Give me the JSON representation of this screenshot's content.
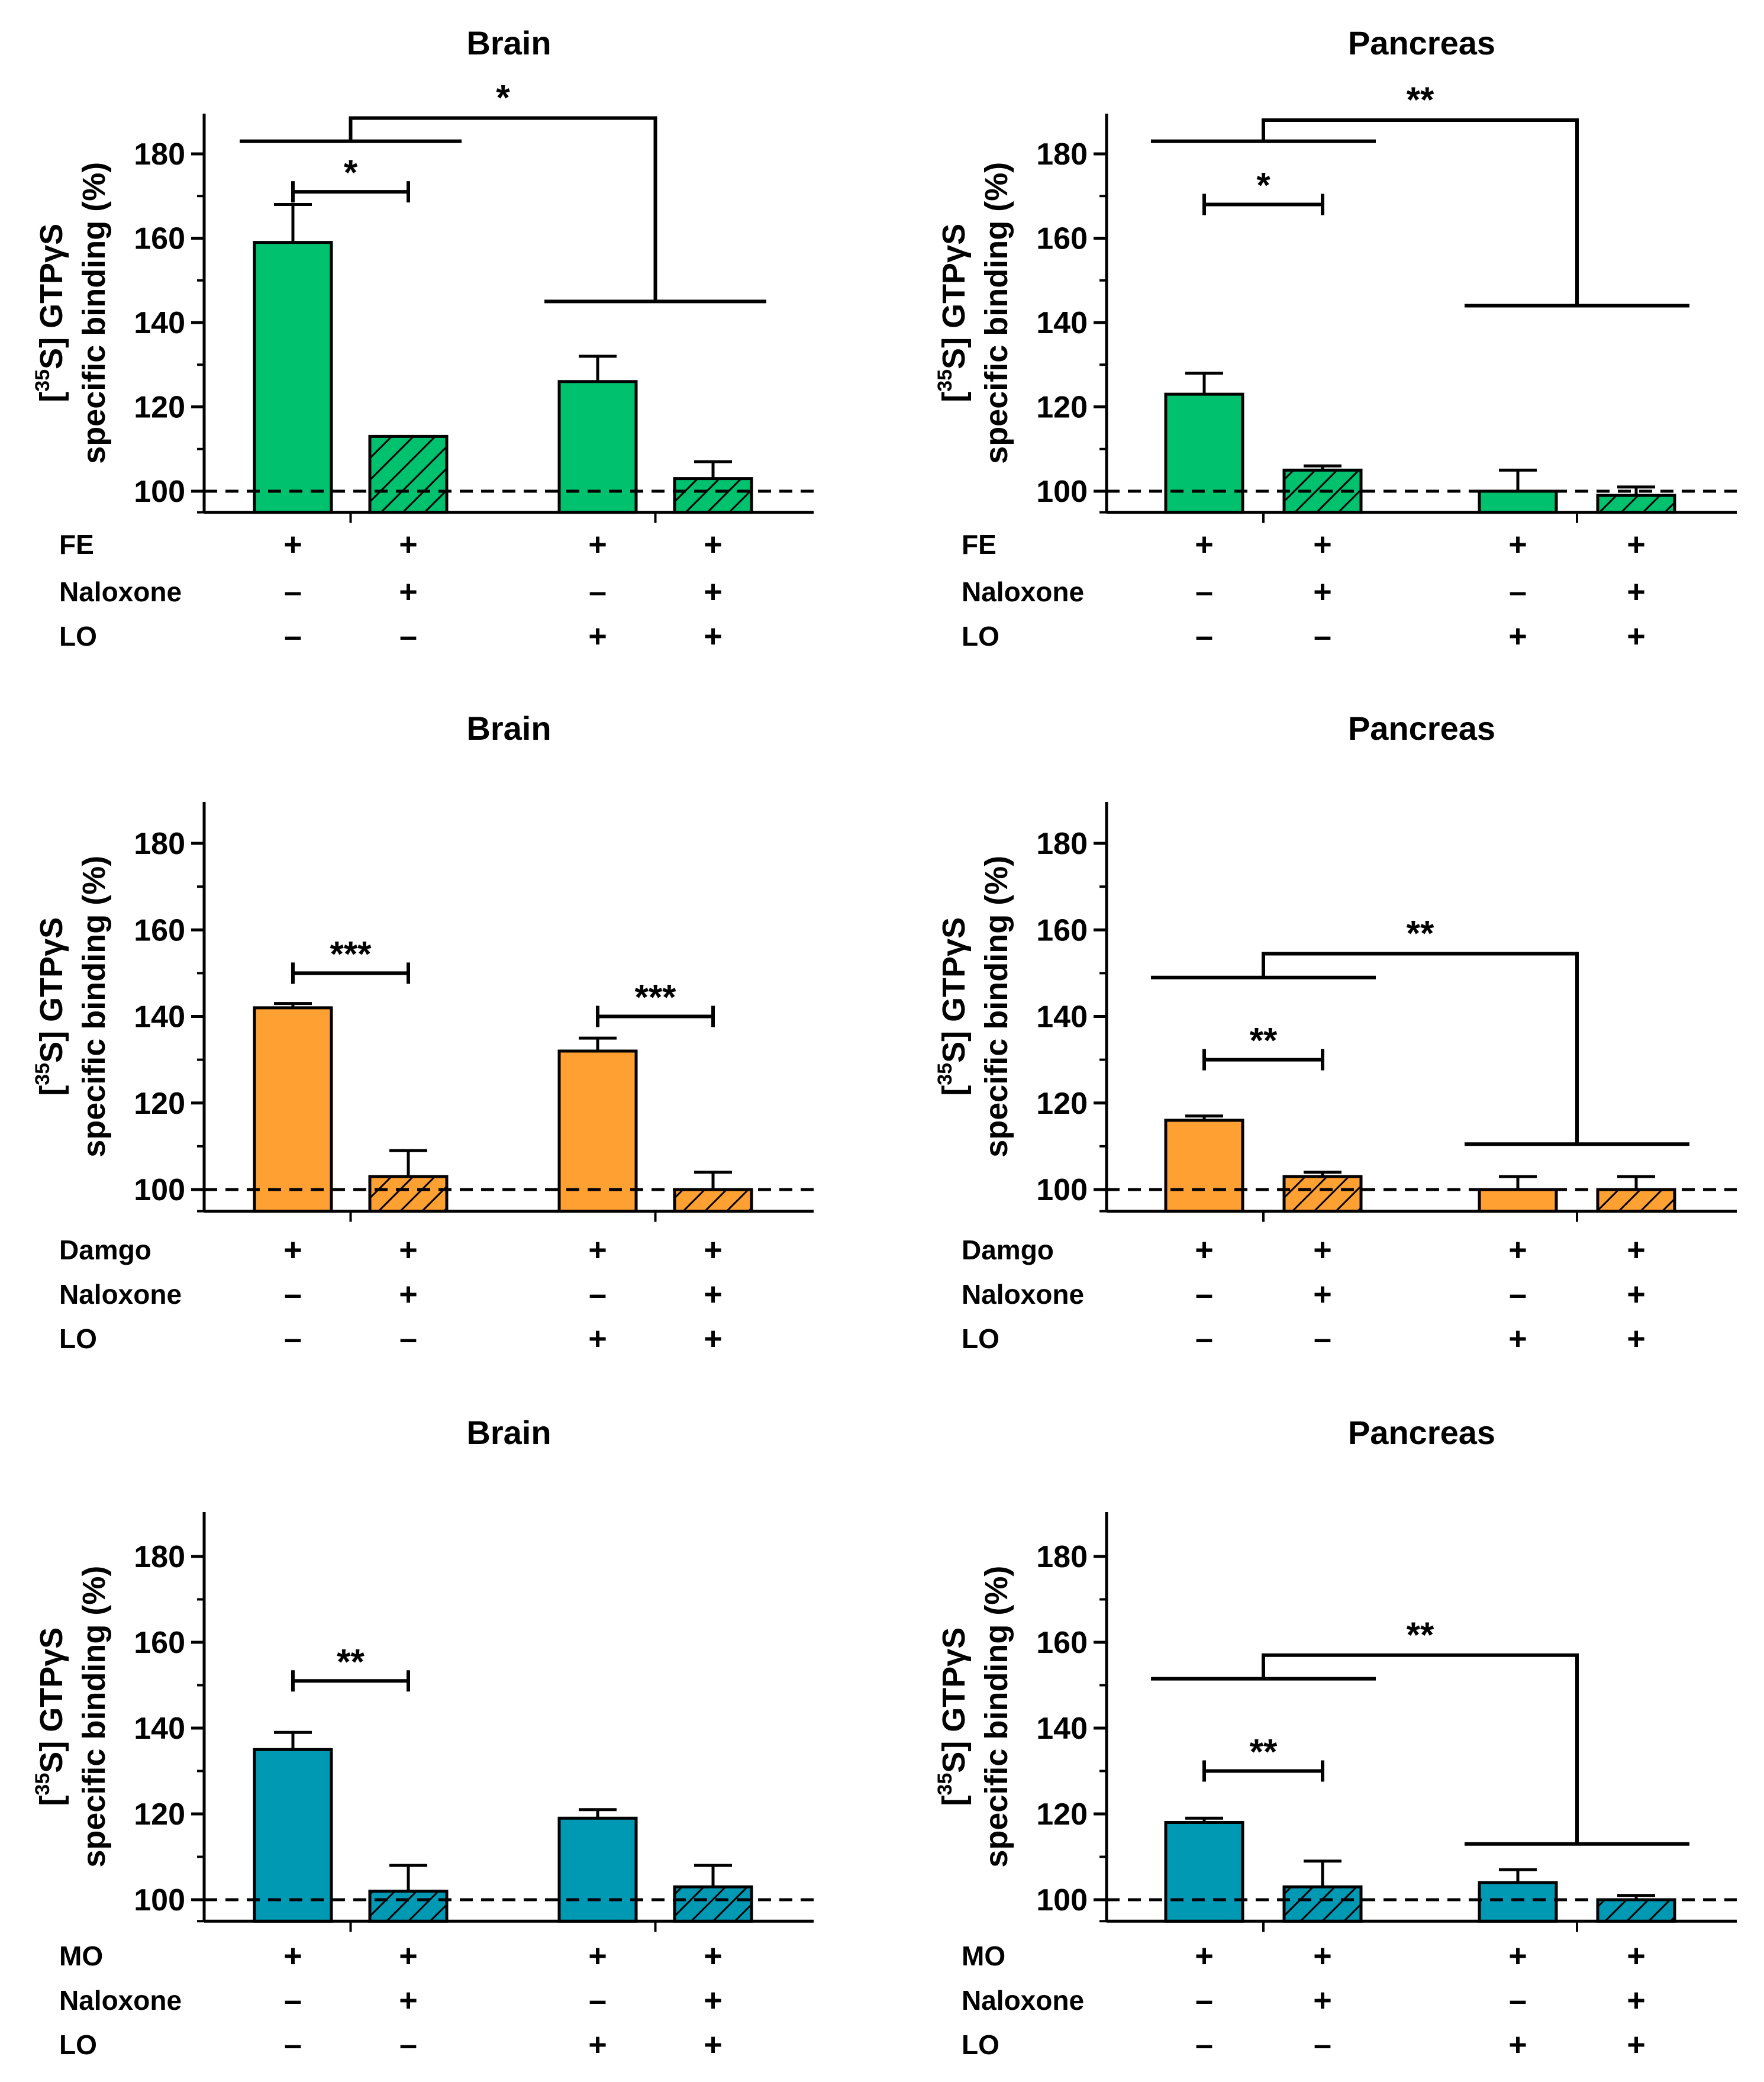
{
  "figure": {
    "ylabel_line1_prefix": "[",
    "ylabel_line1_sup": "35",
    "ylabel_line1_suffix": "S] GTPγS",
    "ylabel_line2": "specific binding (%)",
    "colors": {
      "green": "#00c16e",
      "orange": "#ffa033",
      "teal": "#0099b4",
      "axis": "#000000",
      "baseline": "#000000"
    }
  },
  "chart_data": [
    {
      "type": "bar",
      "title": "Brain",
      "color": "green",
      "ylim": [
        95,
        190
      ],
      "yticks": [
        100,
        120,
        140,
        160,
        180
      ],
      "baseline": 100,
      "categories": [
        "FE",
        "FE + Naloxone",
        "FE + LO",
        "FE + Naloxone + LO"
      ],
      "values": [
        159,
        113,
        126,
        103
      ],
      "errors": [
        9,
        0,
        6,
        4
      ],
      "hatched": [
        false,
        true,
        false,
        true
      ],
      "rows": [
        {
          "label": "FE",
          "signs": [
            "+",
            "+",
            "+",
            "+"
          ]
        },
        {
          "label": "Naloxone",
          "signs": [
            "–",
            "+",
            "–",
            "+"
          ]
        },
        {
          "label": "LO",
          "signs": [
            "–",
            "–",
            "+",
            "+"
          ]
        }
      ],
      "sig": [
        {
          "kind": "pair",
          "from": 0,
          "to": 1,
          "y": 171,
          "label": "*"
        },
        {
          "kind": "group",
          "g1": [
            0,
            1
          ],
          "g2": [
            2,
            3
          ],
          "h1": 183,
          "h2": 145,
          "top": 188.5,
          "label": "*"
        }
      ]
    },
    {
      "type": "bar",
      "title": "Pancreas",
      "color": "green",
      "ylim": [
        95,
        190
      ],
      "yticks": [
        100,
        120,
        140,
        160,
        180
      ],
      "baseline": 100,
      "categories": [
        "FE",
        "FE + Naloxone",
        "FE + LO",
        "FE + Naloxone + LO"
      ],
      "values": [
        123,
        105,
        100,
        99
      ],
      "errors": [
        5,
        1,
        5,
        2
      ],
      "hatched": [
        false,
        true,
        false,
        true
      ],
      "rows": [
        {
          "label": "FE",
          "signs": [
            "+",
            "+",
            "+",
            "+"
          ]
        },
        {
          "label": "Naloxone",
          "signs": [
            "–",
            "+",
            "–",
            "+"
          ]
        },
        {
          "label": "LO",
          "signs": [
            "–",
            "–",
            "+",
            "+"
          ]
        }
      ],
      "sig": [
        {
          "kind": "pair",
          "from": 0,
          "to": 1,
          "y": 168,
          "label": "*"
        },
        {
          "kind": "group",
          "g1": [
            0,
            1
          ],
          "g2": [
            2,
            3
          ],
          "h1": 183,
          "h2": 144,
          "top": 188,
          "label": "**"
        }
      ]
    },
    {
      "type": "bar",
      "title": "Brain",
      "color": "orange",
      "ylim": [
        95,
        190
      ],
      "yticks": [
        100,
        120,
        140,
        160,
        180
      ],
      "baseline": 100,
      "categories": [
        "Damgo",
        "Damgo + Naloxone",
        "Damgo + LO",
        "Damgo + Naloxone + LO"
      ],
      "values": [
        142,
        103,
        132,
        100
      ],
      "errors": [
        1,
        6,
        3,
        4
      ],
      "hatched": [
        false,
        true,
        false,
        true
      ],
      "rows": [
        {
          "label": "Damgo",
          "signs": [
            "+",
            "+",
            "+",
            "+"
          ]
        },
        {
          "label": "Naloxone",
          "signs": [
            "–",
            "+",
            "–",
            "+"
          ]
        },
        {
          "label": "LO",
          "signs": [
            "–",
            "–",
            "+",
            "+"
          ]
        }
      ],
      "sig": [
        {
          "kind": "pair",
          "from": 0,
          "to": 1,
          "y": 150,
          "label": "***"
        },
        {
          "kind": "pair",
          "from": 2,
          "to": 3,
          "y": 140,
          "label": "***"
        }
      ]
    },
    {
      "type": "bar",
      "title": "Pancreas",
      "color": "orange",
      "ylim": [
        95,
        190
      ],
      "yticks": [
        100,
        120,
        140,
        160,
        180
      ],
      "baseline": 100,
      "categories": [
        "Damgo",
        "Damgo + Naloxone",
        "Damgo + LO",
        "Damgo + Naloxone + LO"
      ],
      "values": [
        116,
        103,
        100,
        100
      ],
      "errors": [
        1,
        1,
        3,
        3
      ],
      "hatched": [
        false,
        true,
        false,
        true
      ],
      "rows": [
        {
          "label": "Damgo",
          "signs": [
            "+",
            "+",
            "+",
            "+"
          ]
        },
        {
          "label": "Naloxone",
          "signs": [
            "–",
            "+",
            "–",
            "+"
          ]
        },
        {
          "label": "LO",
          "signs": [
            "–",
            "–",
            "+",
            "+"
          ]
        }
      ],
      "sig": [
        {
          "kind": "pair",
          "from": 0,
          "to": 1,
          "y": 130,
          "label": "**"
        },
        {
          "kind": "group",
          "g1": [
            0,
            1
          ],
          "g2": [
            2,
            3
          ],
          "h1": 149,
          "h2": 110.5,
          "top": 154.5,
          "label": "**"
        }
      ]
    },
    {
      "type": "bar",
      "title": "Brain",
      "color": "teal",
      "ylim": [
        95,
        190
      ],
      "yticks": [
        100,
        120,
        140,
        160,
        180
      ],
      "baseline": 100,
      "categories": [
        "MO",
        "MO + Naloxone",
        "MO + LO",
        "MO + Naloxone + LO"
      ],
      "values": [
        135,
        102,
        119,
        103
      ],
      "errors": [
        4,
        6,
        2,
        5
      ],
      "hatched": [
        false,
        true,
        false,
        true
      ],
      "rows": [
        {
          "label": "MO",
          "signs": [
            "+",
            "+",
            "+",
            "+"
          ]
        },
        {
          "label": "Naloxone",
          "signs": [
            "–",
            "+",
            "–",
            "+"
          ]
        },
        {
          "label": "LO",
          "signs": [
            "–",
            "–",
            "+",
            "+"
          ]
        }
      ],
      "sig": [
        {
          "kind": "pair",
          "from": 0,
          "to": 1,
          "y": 151,
          "label": "**"
        }
      ]
    },
    {
      "type": "bar",
      "title": "Pancreas",
      "color": "teal",
      "ylim": [
        95,
        190
      ],
      "yticks": [
        100,
        120,
        140,
        160,
        180
      ],
      "baseline": 100,
      "categories": [
        "MO",
        "MO + Naloxone",
        "MO + LO",
        "MO + Naloxone + LO"
      ],
      "values": [
        118,
        103,
        104,
        100
      ],
      "errors": [
        1,
        6,
        3,
        1
      ],
      "hatched": [
        false,
        true,
        false,
        true
      ],
      "rows": [
        {
          "label": "MO",
          "signs": [
            "+",
            "+",
            "+",
            "+"
          ]
        },
        {
          "label": "Naloxone",
          "signs": [
            "–",
            "+",
            "–",
            "+"
          ]
        },
        {
          "label": "LO",
          "signs": [
            "–",
            "–",
            "+",
            "+"
          ]
        }
      ],
      "sig": [
        {
          "kind": "pair",
          "from": 0,
          "to": 1,
          "y": 130,
          "label": "**"
        },
        {
          "kind": "group",
          "g1": [
            0,
            1
          ],
          "g2": [
            2,
            3
          ],
          "h1": 151.5,
          "h2": 113,
          "top": 157,
          "label": "**"
        }
      ]
    }
  ]
}
